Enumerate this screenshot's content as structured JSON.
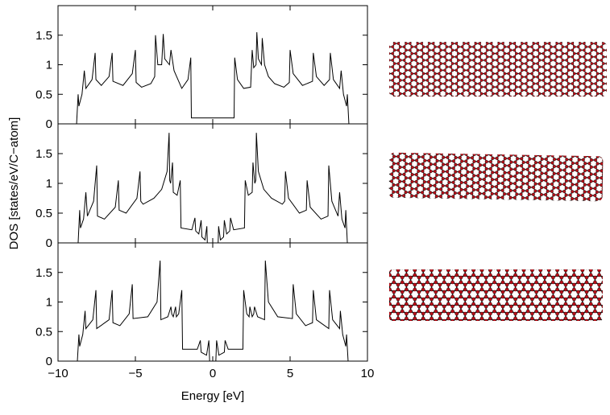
{
  "chart_data": [
    {
      "type": "line",
      "xlim": [
        -10,
        10
      ],
      "ylim": [
        0,
        2
      ],
      "yticks": [
        0,
        0.5,
        1,
        1.5
      ],
      "x": [
        -8.8,
        -8.7,
        -8.65,
        -8.45,
        -8.3,
        -8.2,
        -7.8,
        -7.6,
        -7.55,
        -7.2,
        -6.7,
        -6.5,
        -6.45,
        -5.8,
        -5.2,
        -5.0,
        -4.95,
        -4.6,
        -4.0,
        -3.75,
        -3.7,
        -3.55,
        -3.3,
        -3.2,
        -3.1,
        -2.8,
        -2.7,
        -2.5,
        -2.0,
        -1.6,
        -1.42,
        -1.38,
        1.38,
        1.42,
        1.6,
        2.0,
        2.45,
        2.55,
        2.65,
        2.8,
        2.85,
        2.95,
        3.15,
        3.2,
        3.35,
        3.6,
        4.0,
        4.6,
        4.95,
        5.0,
        5.2,
        5.8,
        6.45,
        6.5,
        6.7,
        7.2,
        7.55,
        7.6,
        7.8,
        8.2,
        8.3,
        8.45,
        8.65,
        8.7,
        8.8
      ],
      "values": [
        0,
        0.5,
        0.3,
        0.5,
        0.9,
        0.6,
        0.75,
        1.2,
        0.75,
        0.65,
        0.8,
        1.2,
        0.72,
        0.65,
        0.85,
        1.25,
        0.7,
        0.62,
        0.68,
        0.8,
        1.5,
        1.0,
        1.0,
        1.52,
        1.1,
        1.0,
        1.25,
        0.9,
        0.6,
        0.75,
        1.12,
        0.1,
        0.1,
        1.12,
        0.75,
        0.6,
        0.62,
        1.25,
        0.95,
        1.0,
        1.55,
        1.1,
        1.0,
        1.45,
        1.0,
        0.8,
        0.68,
        0.62,
        0.7,
        1.25,
        0.85,
        0.65,
        0.72,
        1.2,
        0.8,
        0.65,
        0.75,
        1.2,
        0.75,
        0.6,
        0.9,
        0.5,
        0.3,
        0.5,
        0
      ]
    },
    {
      "type": "line",
      "xlim": [
        -10,
        10
      ],
      "ylim": [
        0,
        2
      ],
      "yticks": [
        0,
        0.5,
        1,
        1.5
      ],
      "ylabel": "DOS [states/eV/C−atom]",
      "x": [
        -8.7,
        -8.6,
        -8.55,
        -8.35,
        -8.2,
        -8.1,
        -7.7,
        -7.5,
        -7.45,
        -7.0,
        -6.3,
        -6.1,
        -6.05,
        -5.6,
        -4.9,
        -4.7,
        -4.65,
        -4.5,
        -3.8,
        -3.3,
        -2.95,
        -2.82,
        -2.78,
        -2.72,
        -2.6,
        -2.55,
        -2.3,
        -2.1,
        -2.05,
        -1.35,
        -1.15,
        -1.1,
        -0.9,
        -0.75,
        -0.7,
        -0.5,
        -0.38,
        -0.35,
        0.35,
        0.38,
        0.5,
        0.7,
        0.75,
        0.9,
        1.1,
        1.15,
        1.35,
        2.05,
        2.1,
        2.3,
        2.55,
        2.6,
        2.72,
        2.78,
        2.82,
        2.95,
        3.3,
        3.8,
        4.5,
        4.65,
        4.7,
        4.9,
        5.6,
        6.05,
        6.1,
        6.3,
        7.0,
        7.45,
        7.5,
        7.7,
        8.1,
        8.2,
        8.35,
        8.55,
        8.6,
        8.7
      ],
      "values": [
        0,
        0.55,
        0.25,
        0.4,
        0.85,
        0.45,
        0.7,
        1.3,
        0.45,
        0.4,
        0.6,
        1.05,
        0.55,
        0.5,
        0.75,
        1.2,
        0.7,
        0.65,
        0.75,
        0.9,
        1.2,
        1.85,
        1.05,
        1.0,
        1.35,
        0.85,
        0.8,
        1.05,
        0.25,
        0.22,
        0.42,
        0.2,
        0.15,
        0.38,
        0.1,
        0.05,
        0.28,
        0,
        0,
        0.28,
        0.05,
        0.1,
        0.38,
        0.15,
        0.2,
        0.42,
        0.22,
        0.25,
        1.05,
        0.8,
        0.85,
        1.35,
        1.0,
        1.05,
        1.85,
        1.2,
        0.9,
        0.75,
        0.65,
        0.7,
        1.2,
        0.75,
        0.5,
        0.55,
        1.05,
        0.6,
        0.4,
        0.45,
        1.3,
        0.7,
        0.45,
        0.85,
        0.4,
        0.25,
        0.55,
        0
      ]
    },
    {
      "type": "line",
      "xlim": [
        -10,
        10
      ],
      "ylim": [
        0,
        2
      ],
      "yticks": [
        0,
        0.5,
        1,
        1.5
      ],
      "xticks": [
        {
          "value": -10,
          "label": "−10"
        },
        {
          "value": -5,
          "label": "−5"
        },
        0,
        5,
        10
      ],
      "xlabel": "Energy [eV]",
      "x": [
        -8.75,
        -8.65,
        -8.6,
        -8.4,
        -8.25,
        -8.2,
        -7.75,
        -7.55,
        -7.5,
        -6.7,
        -6.5,
        -6.45,
        -6.0,
        -5.4,
        -5.2,
        -5.15,
        -4.2,
        -3.6,
        -3.4,
        -3.35,
        -2.9,
        -2.7,
        -2.65,
        -2.55,
        -2.4,
        -2.35,
        -2.2,
        -2.0,
        -1.95,
        -1.0,
        -0.8,
        -0.75,
        -0.4,
        -0.25,
        -0.2,
        0.2,
        0.25,
        0.4,
        0.75,
        0.8,
        1.0,
        1.95,
        2.0,
        2.2,
        2.35,
        2.4,
        2.55,
        2.65,
        2.7,
        2.9,
        3.35,
        3.4,
        3.6,
        4.2,
        5.15,
        5.2,
        5.4,
        6.0,
        6.45,
        6.5,
        6.7,
        7.5,
        7.55,
        7.75,
        8.2,
        8.25,
        8.4,
        8.6,
        8.65,
        8.75
      ],
      "values": [
        0,
        0.45,
        0.25,
        0.45,
        0.85,
        0.55,
        0.7,
        1.2,
        0.55,
        0.7,
        1.2,
        0.65,
        0.6,
        0.8,
        1.3,
        0.72,
        0.75,
        1.0,
        1.7,
        0.7,
        0.75,
        0.92,
        0.8,
        0.75,
        0.92,
        0.75,
        0.8,
        1.2,
        0.2,
        0.2,
        0.35,
        0.15,
        0.1,
        0.35,
        0,
        0,
        0.35,
        0.1,
        0.15,
        0.35,
        0.2,
        0.2,
        1.2,
        0.8,
        0.75,
        0.92,
        0.75,
        0.8,
        0.92,
        0.75,
        0.7,
        1.7,
        1.0,
        0.75,
        0.72,
        1.3,
        0.8,
        0.6,
        0.65,
        1.2,
        0.7,
        0.55,
        1.2,
        0.7,
        0.55,
        0.85,
        0.45,
        0.25,
        0.45,
        0
      ]
    }
  ]
}
